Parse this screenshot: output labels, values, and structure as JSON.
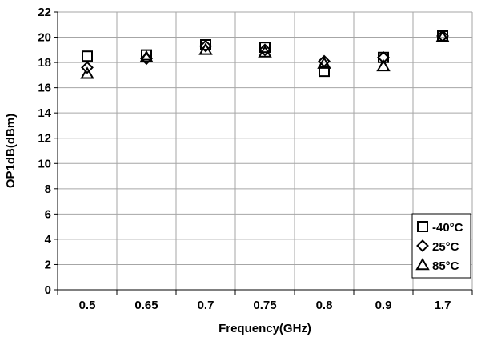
{
  "chart_data": {
    "type": "scatter",
    "title": "",
    "xlabel": "Frequency(GHz)",
    "ylabel": "OP1dB(dBm)",
    "categories": [
      "0.5",
      "0.65",
      "0.7",
      "0.75",
      "0.8",
      "0.9",
      "1.7"
    ],
    "ylim": [
      0,
      22
    ],
    "yticks": [
      "0",
      "2",
      "4",
      "6",
      "8",
      "10",
      "12",
      "14",
      "16",
      "18",
      "20",
      "22"
    ],
    "grid": true,
    "legend_position": "bottom-right",
    "series": [
      {
        "name": "-40°C",
        "marker": "square",
        "values": [
          18.5,
          18.6,
          19.4,
          19.2,
          17.3,
          18.4,
          20.1
        ]
      },
      {
        "name": "25°C",
        "marker": "diamond",
        "values": [
          17.6,
          18.3,
          19.3,
          19.0,
          18.1,
          18.4,
          20.1
        ]
      },
      {
        "name": "85°C",
        "marker": "triangle",
        "values": [
          17.1,
          18.4,
          19.0,
          18.8,
          17.9,
          17.7,
          20.0
        ]
      }
    ],
    "colors": {
      "marker": "#000000",
      "grid": "#a6a6a6",
      "axis": "#000000"
    }
  }
}
